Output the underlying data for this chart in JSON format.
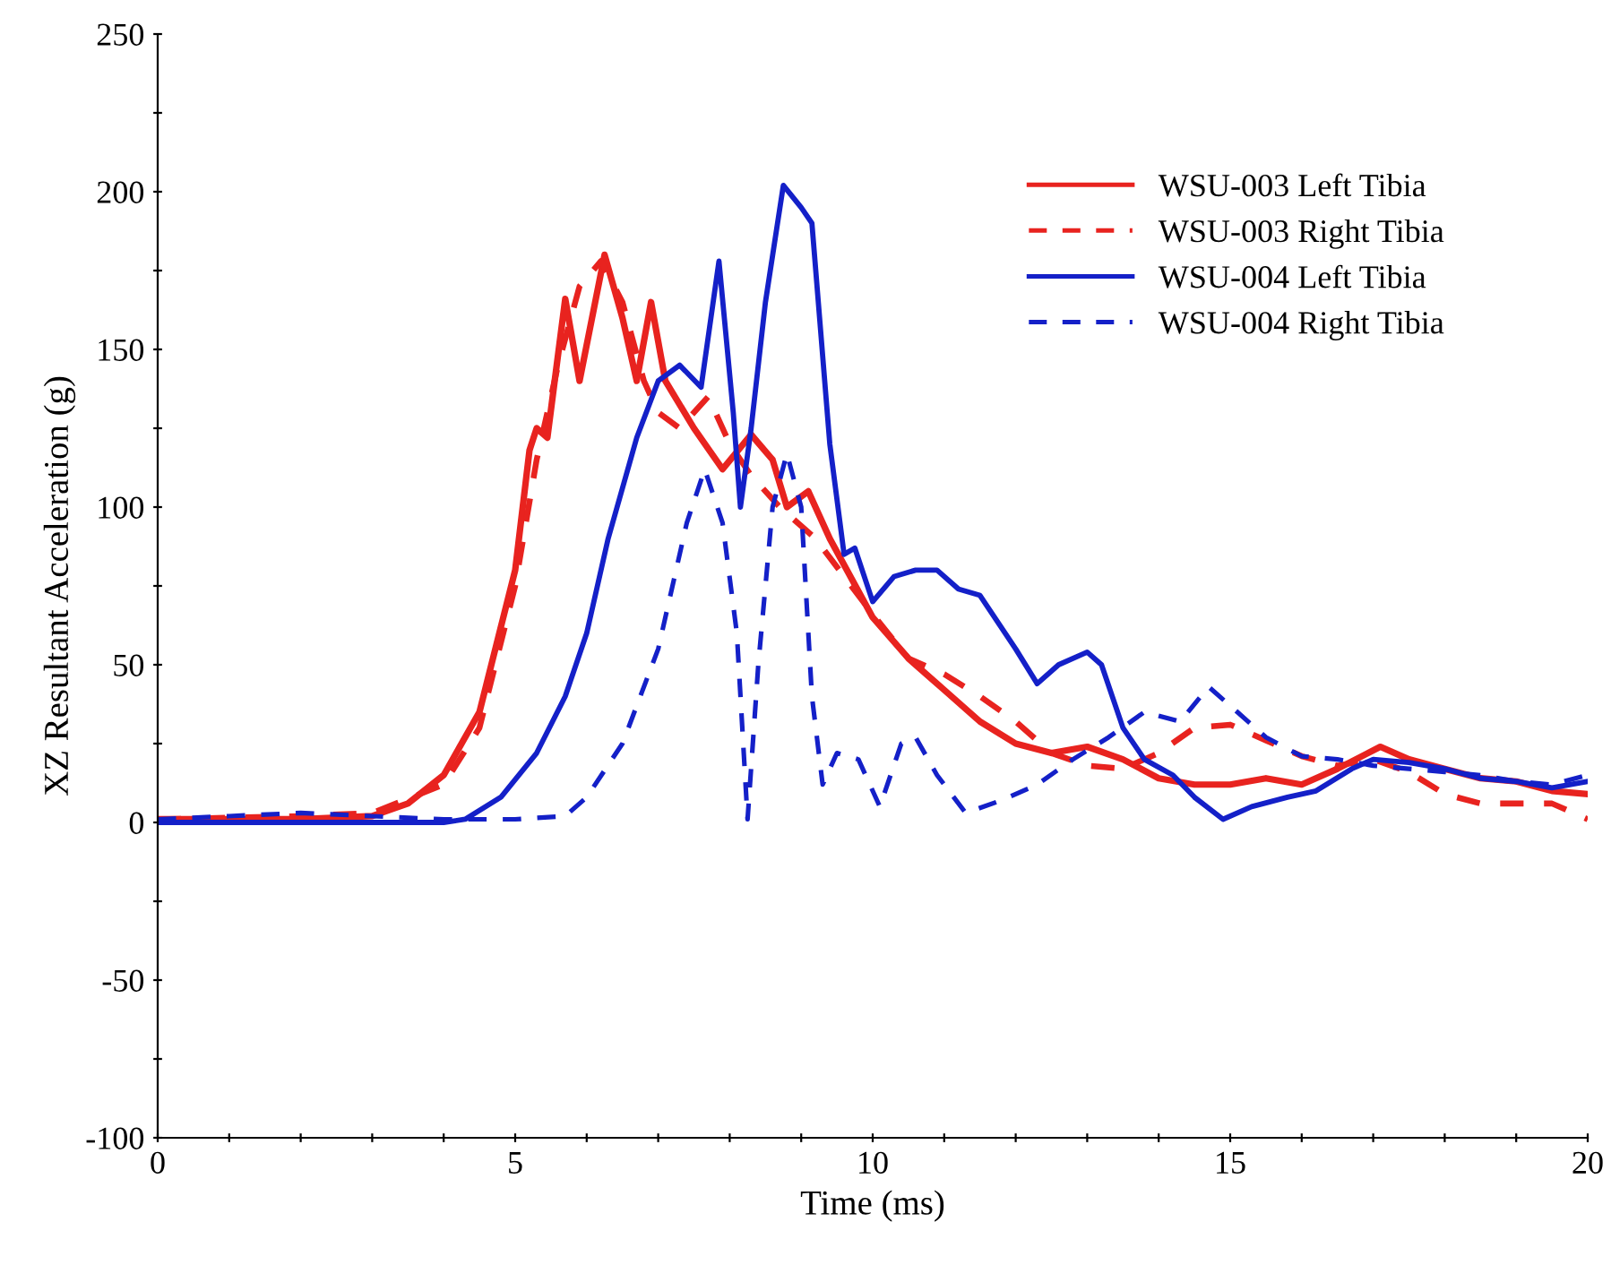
{
  "chart_data": {
    "type": "line",
    "xlabel": "Time (ms)",
    "ylabel": "XZ Resultant Acceleration (g)",
    "xlim": [
      0,
      20
    ],
    "ylim": [
      -100,
      250
    ],
    "xticks": [
      0,
      {
        "value": 1,
        "label": null
      },
      {
        "value": 2,
        "label": null
      },
      {
        "value": 3,
        "label": null
      },
      {
        "value": 4,
        "label": null
      },
      5,
      {
        "value": 6,
        "label": null
      },
      {
        "value": 7,
        "label": null
      },
      {
        "value": 8,
        "label": null
      },
      {
        "value": 9,
        "label": null
      },
      10,
      {
        "value": 11,
        "label": null
      },
      {
        "value": 12,
        "label": null
      },
      {
        "value": 13,
        "label": null
      },
      {
        "value": 14,
        "label": null
      },
      15,
      {
        "value": 16,
        "label": null
      },
      {
        "value": 17,
        "label": null
      },
      {
        "value": 18,
        "label": null
      },
      {
        "value": 19,
        "label": null
      },
      20
    ],
    "yticks": [
      -100,
      {
        "value": -75,
        "label": null
      },
      -50,
      {
        "value": -25,
        "label": null
      },
      0,
      {
        "value": 25,
        "label": null
      },
      50,
      {
        "value": 75,
        "label": null
      },
      100,
      {
        "value": 125,
        "label": null
      },
      150,
      {
        "value": 175,
        "label": null
      },
      200,
      {
        "value": 225,
        "label": null
      },
      250
    ],
    "grid": false,
    "legend": "top right",
    "marker": "none",
    "series": [
      {
        "name": "WSU-003 Left Tibia",
        "color": "#e8231f",
        "line_style": "solid",
        "x": [
          0,
          2,
          3,
          3.5,
          4,
          4.5,
          5,
          5.2,
          5.3,
          5.45,
          5.7,
          5.9,
          6.25,
          6.5,
          6.7,
          6.9,
          7.1,
          7.5,
          7.9,
          8.3,
          8.6,
          8.8,
          9.1,
          9.4,
          10,
          10.5,
          11,
          11.5,
          12,
          12.5,
          13,
          13.5,
          14,
          14.5,
          15,
          15.5,
          16,
          16.5,
          17.1,
          17.5,
          18,
          18.5,
          19,
          19.5,
          20
        ],
        "values": [
          1,
          1,
          2,
          6,
          15,
          35,
          80,
          118,
          125,
          122,
          166,
          140,
          180,
          160,
          140,
          165,
          140,
          125,
          112,
          123,
          115,
          100,
          105,
          90,
          65,
          52,
          42,
          32,
          25,
          22,
          24,
          20,
          14,
          12,
          12,
          14,
          12,
          17,
          24,
          20,
          17,
          14,
          13,
          10,
          9
        ]
      },
      {
        "name": "WSU-003 Right Tibia",
        "color": "#e8231f",
        "line_style": "dashed",
        "x": [
          0,
          2,
          3,
          4,
          4.5,
          5,
          5.3,
          5.6,
          5.9,
          6.2,
          6.5,
          6.8,
          7.0,
          7.3,
          7.7,
          8,
          8.3,
          8.7,
          9.2,
          9.6,
          10,
          10.5,
          11,
          11.5,
          12,
          12.5,
          13,
          13.5,
          14,
          14.5,
          15,
          15.5,
          16,
          16.5,
          17,
          17.5,
          18,
          18.5,
          19,
          19.5,
          20
        ],
        "values": [
          1,
          2,
          3,
          12,
          30,
          75,
          115,
          145,
          170,
          178,
          165,
          140,
          130,
          125,
          135,
          120,
          110,
          100,
          90,
          78,
          66,
          52,
          47,
          40,
          32,
          22,
          18,
          17,
          22,
          30,
          31,
          26,
          21,
          18,
          20,
          16,
          9,
          6,
          6,
          6,
          1
        ]
      },
      {
        "name": "WSU-004 Left Tibia",
        "color": "#1420c8",
        "line_style": "solid",
        "x": [
          0,
          4,
          4.3,
          4.8,
          5.3,
          5.7,
          6,
          6.3,
          6.7,
          7.0,
          7.3,
          7.6,
          7.85,
          8.05,
          8.15,
          8.3,
          8.5,
          8.75,
          9.0,
          9.15,
          9.4,
          9.6,
          9.75,
          10,
          10.3,
          10.6,
          10.9,
          11.2,
          11.5,
          12,
          12.3,
          12.6,
          13,
          13.2,
          13.5,
          13.8,
          14.2,
          14.5,
          14.9,
          15.3,
          15.8,
          16.2,
          16.7,
          17.0,
          17.5,
          18,
          18.5,
          19,
          19.5,
          20
        ],
        "values": [
          0,
          0,
          1,
          8,
          22,
          40,
          60,
          90,
          122,
          140,
          145,
          138,
          178,
          130,
          100,
          125,
          165,
          202,
          195,
          190,
          120,
          85,
          87,
          70,
          78,
          80,
          80,
          74,
          72,
          55,
          44,
          50,
          54,
          50,
          30,
          20,
          15,
          8,
          1,
          5,
          8,
          10,
          17,
          20,
          19,
          17,
          14,
          13,
          11,
          13
        ]
      },
      {
        "name": "WSU-004 Right Tibia",
        "color": "#1420c8",
        "line_style": "dashed",
        "x": [
          0,
          1,
          2,
          3,
          4,
          5,
          5.7,
          6,
          6.5,
          7.0,
          7.4,
          7.65,
          7.9,
          8.1,
          8.25,
          8.4,
          8.6,
          8.8,
          9.0,
          9.15,
          9.3,
          9.5,
          9.8,
          10.1,
          10.4,
          10.6,
          10.9,
          11.3,
          11.8,
          12.3,
          12.8,
          13.3,
          13.8,
          14.3,
          14.7,
          15.1,
          15.5,
          16,
          16.5,
          17,
          17.5,
          18,
          18.5,
          19,
          19.5,
          20
        ],
        "values": [
          1,
          2,
          3,
          2,
          1,
          1,
          2,
          8,
          25,
          55,
          95,
          112,
          95,
          60,
          1,
          50,
          100,
          117,
          100,
          40,
          12,
          22,
          20,
          5,
          25,
          27,
          15,
          3,
          7,
          12,
          20,
          27,
          35,
          32,
          43,
          35,
          27,
          21,
          20,
          18,
          17,
          16,
          15,
          13,
          12,
          15
        ]
      }
    ]
  }
}
